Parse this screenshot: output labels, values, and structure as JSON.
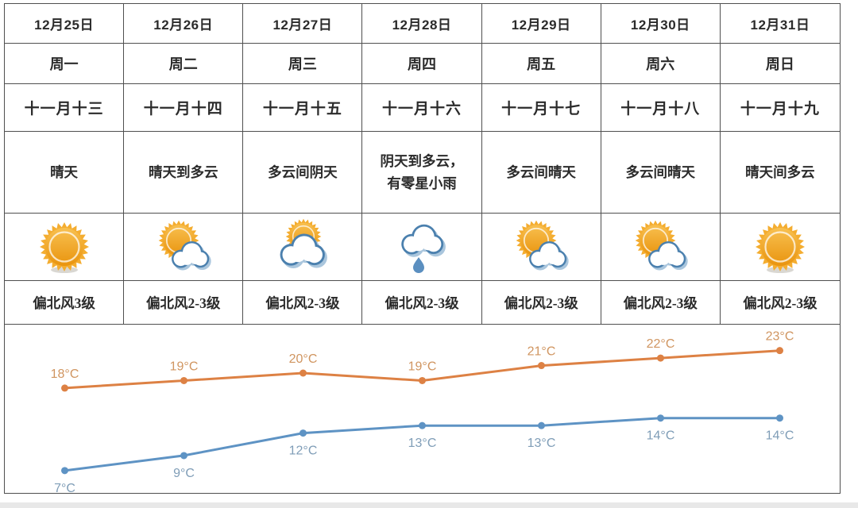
{
  "page": {
    "background": "#ffffff",
    "footer_strip_color": "#e8e8e8"
  },
  "colors": {
    "table_border": "#4f4f4f",
    "table_text": "#2b2b2b",
    "sun_ray": "#f4ad30",
    "sun_core_top": "#f8c050",
    "sun_core_bottom": "#e9940e",
    "cloud_outline": "#4b80ae",
    "cloud_shadow": "#aac6dd",
    "cloud_fill": "#ffffff",
    "raindrop": "#5b8fc0"
  },
  "forecast": {
    "columns": [
      {
        "date": "12月25日",
        "weekday": "周一",
        "lunar": "十一月十三",
        "weather": "晴天",
        "icon": "sun",
        "wind": "偏北风3级"
      },
      {
        "date": "12月26日",
        "weekday": "周二",
        "lunar": "十一月十四",
        "weather": "晴天到多云",
        "icon": "sun-cloud",
        "wind": "偏北风2-3级"
      },
      {
        "date": "12月27日",
        "weekday": "周三",
        "lunar": "十一月十五",
        "weather": "多云间阴天",
        "icon": "cloud-sun",
        "wind": "偏北风2-3级"
      },
      {
        "date": "12月28日",
        "weekday": "周四",
        "lunar": "十一月十六",
        "weather": "阴天到多云，\n有零星小雨",
        "icon": "rain-cloud",
        "wind": "偏北风2-3级"
      },
      {
        "date": "12月29日",
        "weekday": "周五",
        "lunar": "十一月十七",
        "weather": "多云间晴天",
        "icon": "sun-cloud",
        "wind": "偏北风2-3级"
      },
      {
        "date": "12月30日",
        "weekday": "周六",
        "lunar": "十一月十八",
        "weather": "多云间晴天",
        "icon": "sun-cloud",
        "wind": "偏北风2-3级"
      },
      {
        "date": "12月31日",
        "weekday": "周日",
        "lunar": "十一月十九",
        "weather": "晴天间多云",
        "icon": "sun",
        "wind": "偏北风2-3级"
      }
    ]
  },
  "chart_data": {
    "type": "line",
    "categories": [
      "12月25日",
      "12月26日",
      "12月27日",
      "12月28日",
      "12月29日",
      "12月30日",
      "12月31日"
    ],
    "unit": "°C",
    "series": [
      {
        "id": "high",
        "values": [
          18,
          19,
          20,
          19,
          21,
          22,
          23
        ],
        "color": "#dd8144",
        "label_color": "#d09560",
        "label_position": "above"
      },
      {
        "id": "low",
        "values": [
          7,
          9,
          12,
          13,
          13,
          14,
          14
        ],
        "color": "#5e93c4",
        "label_color": "#7f9db7",
        "label_position": "below"
      }
    ],
    "title": "",
    "xlabel": "",
    "ylabel": "",
    "grid": false,
    "legend": "none",
    "axes_visible": false
  }
}
